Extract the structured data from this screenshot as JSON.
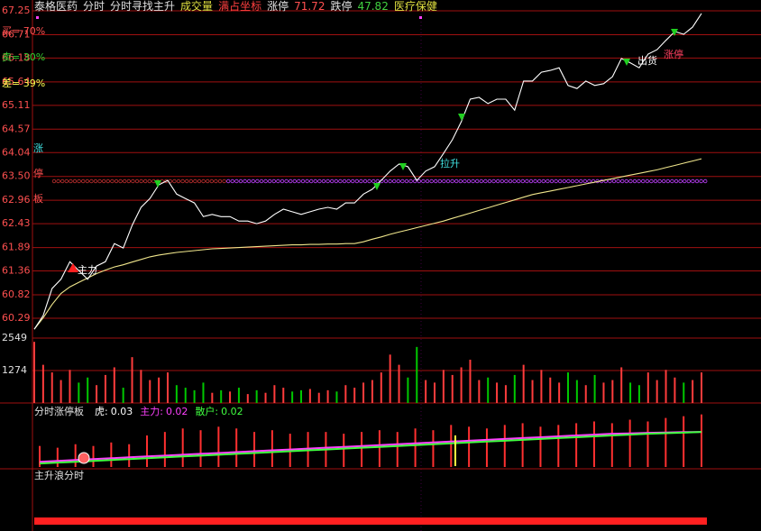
{
  "header": [
    {
      "text": "泰格医药",
      "color": "#e0e0e0"
    },
    {
      "text": "分时",
      "color": "#e0e0e0"
    },
    {
      "text": "分时寻找主升",
      "color": "#e0e0e0"
    },
    {
      "text": "成交量",
      "color": "#e0e040"
    },
    {
      "text": "满占坐标",
      "color": "#ff4040"
    },
    {
      "text": "涨停",
      "color": "#e0e0e0"
    },
    {
      "text": 71.72,
      "color": "#ff5050"
    },
    {
      "text": "跌停",
      "color": "#e0e0e0"
    },
    {
      "text": 47.82,
      "color": "#40d040"
    },
    {
      "text": "医疗保健",
      "color": "#e0e040"
    }
  ],
  "chart_data": [
    {
      "type": "line",
      "series": [
        {
          "color": "#ffffff",
          "values": [
            60.04,
            60.35,
            60.96,
            61.17,
            61.57,
            61.37,
            61.17,
            61.47,
            61.57,
            61.98,
            61.88,
            62.39,
            62.8,
            63.0,
            63.31,
            63.41,
            63.1,
            63.0,
            62.9,
            62.59,
            62.64,
            62.59,
            62.59,
            62.49,
            62.49,
            62.43,
            62.49,
            62.64,
            62.76,
            62.7,
            62.64,
            62.7,
            62.76,
            62.8,
            62.76,
            62.9,
            62.9,
            63.1,
            63.21,
            63.41,
            63.62,
            63.78,
            63.72,
            63.41,
            63.62,
            63.72,
            64.02,
            64.33,
            64.74,
            65.25,
            65.29,
            65.15,
            65.25,
            65.25,
            65.0,
            65.66,
            65.66,
            65.86,
            65.9,
            65.96,
            65.56,
            65.49,
            65.66,
            65.56,
            65.6,
            65.76,
            66.17,
            66.07,
            65.96,
            66.27,
            66.37,
            66.58,
            66.78,
            66.72,
            66.88,
            67.19
          ]
        },
        {
          "color": "#f0e68c",
          "values": [
            60.04,
            60.3,
            60.6,
            60.85,
            61.0,
            61.1,
            61.2,
            61.3,
            61.38,
            61.45,
            61.5,
            61.56,
            61.62,
            61.68,
            61.72,
            61.75,
            61.78,
            61.8,
            61.82,
            61.84,
            61.86,
            61.87,
            61.88,
            61.89,
            61.9,
            61.91,
            61.92,
            61.93,
            61.94,
            61.95,
            61.95,
            61.96,
            61.96,
            61.97,
            61.97,
            61.98,
            61.98,
            62.02,
            62.08,
            62.13,
            62.19,
            62.24,
            62.29,
            62.34,
            62.39,
            62.44,
            62.49,
            62.55,
            62.61,
            62.67,
            62.73,
            62.79,
            62.85,
            62.91,
            62.97,
            63.03,
            63.09,
            63.13,
            63.17,
            63.21,
            63.25,
            63.29,
            63.33,
            63.37,
            63.41,
            63.45,
            63.49,
            63.53,
            63.57,
            63.61,
            63.65,
            63.7,
            63.75,
            63.8,
            63.85,
            63.9
          ]
        }
      ],
      "ylim": [
        59.84,
        67.25
      ],
      "yticks": [
        67.25,
        66.71,
        66.18,
        65.64,
        65.11,
        64.57,
        64.04,
        {
          "value": 63.5,
          "label": "63.50"
        },
        62.96,
        62.43,
        61.89,
        61.36,
        60.82,
        60.29
      ],
      "grid": true,
      "grid_color": "#a01010",
      "annotations": [
        {
          "text": "买= 70%",
          "color": "#ff5050"
        },
        {
          "text": "卖= 30%",
          "color": "#30d030"
        },
        {
          "text": "差= 39%",
          "color": "#ffff50"
        },
        {
          "text": "涨",
          "color": "#40e0e0"
        },
        {
          "text": "停",
          "color": "#ff5050"
        },
        {
          "text": "板",
          "color": "#ff5050"
        },
        {
          "text": "主力",
          "color": "#ffffff"
        },
        {
          "text": "拉升",
          "color": "#40e0e0"
        },
        {
          "text": "出货",
          "color": "#ffffff"
        },
        {
          "text": "涨停",
          "color": "#ff4060"
        }
      ]
    },
    {
      "type": "bar",
      "values": [
        2400,
        1500,
        1200,
        900,
        1300,
        800,
        1000,
        700,
        1100,
        1400,
        600,
        1800,
        1300,
        900,
        1000,
        1200,
        700,
        600,
        500,
        800,
        400,
        500,
        450,
        600,
        350,
        500,
        400,
        700,
        600,
        450,
        500,
        550,
        400,
        500,
        450,
        700,
        600,
        800,
        900,
        1200,
        1900,
        1500,
        1000,
        2200,
        900,
        800,
        1300,
        1100,
        1400,
        1700,
        900,
        1000,
        800,
        700,
        1100,
        1500,
        900,
        1300,
        1000,
        800,
        1200,
        900,
        700,
        1100,
        800,
        900,
        1400,
        800,
        700,
        1200,
        900,
        1300,
        1000,
        800,
        900,
        1200
      ],
      "up_color": "#ff3c3c",
      "down_color": "#00c800",
      "ylim": [
        0,
        2549
      ],
      "yticks": [
        1274,
        2549
      ]
    },
    {
      "type": "indicator",
      "title": "分时涨停板",
      "ylim": [
        0,
        0.035
      ],
      "series": [
        {
          "name": "虎:",
          "kind": "bar",
          "color": "#ff3030",
          "label_color": "#ffffff",
          "values": [
            0.012,
            0.011,
            0.013,
            0.012,
            0.014,
            0.013,
            0.018,
            0.02,
            0.022,
            0.021,
            0.023,
            0.022,
            0.02,
            0.021,
            0.019,
            0.02,
            0.02,
            0.019,
            0.02,
            0.021,
            0.02,
            0.022,
            0.021,
            0.024,
            0.023,
            0.022,
            0.024,
            0.025,
            0.023,
            0.024,
            0.025,
            0.026,
            0.025,
            0.027,
            0.026,
            0.028,
            0.029,
            0.03
          ]
        },
        {
          "name": "主力:",
          "kind": "line",
          "color": "#ff40ff",
          "label_color": "#ff40ff",
          "values": [
            0.003,
            0.0035,
            0.004,
            0.0045,
            0.005,
            0.0055,
            0.006,
            0.0065,
            0.007,
            0.0075,
            0.008,
            0.0085,
            0.009,
            0.0095,
            0.01,
            0.0105,
            0.011,
            0.0115,
            0.012,
            0.0125,
            0.013,
            0.0135,
            0.014,
            0.0145,
            0.015,
            0.0155,
            0.016,
            0.0165,
            0.017,
            0.0175,
            0.018,
            0.0185,
            0.019,
            0.0192,
            0.0195,
            0.0197,
            0.0199,
            0.02
          ]
        },
        {
          "name": "散户:",
          "kind": "line",
          "color": "#40ff40",
          "label_color": "#40ff40",
          "values": [
            0.002,
            0.0025,
            0.003,
            0.0035,
            0.004,
            0.0045,
            0.005,
            0.0055,
            0.006,
            0.0065,
            0.007,
            0.0075,
            0.008,
            0.0085,
            0.009,
            0.0095,
            0.01,
            0.0105,
            0.011,
            0.0115,
            0.012,
            0.0125,
            0.013,
            0.0135,
            0.014,
            0.0145,
            0.015,
            0.0155,
            0.016,
            0.0165,
            0.017,
            0.0175,
            0.018,
            0.0185,
            0.019,
            0.0193,
            0.0196,
            0.02
          ]
        }
      ]
    },
    {
      "type": "panel",
      "title": "主升浪分时"
    }
  ]
}
